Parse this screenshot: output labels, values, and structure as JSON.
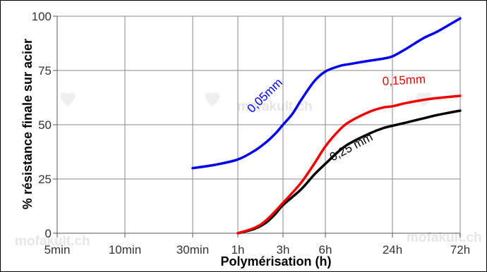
{
  "chart_data": {
    "type": "line",
    "xlabel": "Polymérisation (h)",
    "ylabel": "% résistance finale sur acier",
    "ylim": [
      0,
      100
    ],
    "yticks": [
      0,
      25,
      50,
      75,
      100
    ],
    "x_tick_labels": [
      "5min",
      "10min",
      "30min",
      "1h",
      "3h",
      "6h",
      "24h",
      "72h"
    ],
    "x_tick_hours": [
      0.0833,
      0.1667,
      0.5,
      1,
      3,
      6,
      24,
      72
    ],
    "grid": true,
    "watermark": "mofakult.ch",
    "series": [
      {
        "name": "0,05mm",
        "color": "#0000ee",
        "x": [
          0.5,
          0.7,
          1,
          1.5,
          2,
          2.5,
          3,
          3.5,
          4,
          5,
          6,
          8,
          10,
          15,
          20,
          24,
          30,
          40,
          50,
          72
        ],
        "y": [
          30,
          31.5,
          34,
          38,
          42,
          46,
          50,
          55,
          61,
          70,
          74.5,
          77,
          78,
          79.5,
          80.5,
          81.5,
          85,
          90,
          93,
          99
        ]
      },
      {
        "name": "0,15mm",
        "color": "#ee0000",
        "x": [
          1,
          1.5,
          2,
          3,
          4,
          5,
          6,
          8,
          10,
          15,
          20,
          24,
          30,
          40,
          50,
          72
        ],
        "y": [
          0,
          2.5,
          6,
          14,
          23,
          32,
          40,
          47.5,
          51.5,
          56,
          58,
          58.5,
          60,
          61.5,
          62.3,
          63.3
        ]
      },
      {
        "name": "0,25 mm",
        "color": "#000000",
        "x": [
          1,
          1.5,
          2,
          2.5,
          3,
          4,
          5,
          6,
          8,
          10,
          15,
          20,
          24,
          30,
          40,
          50,
          72
        ],
        "y": [
          0,
          2,
          5,
          9,
          13,
          20,
          27,
          32,
          38,
          41.5,
          46,
          48.5,
          49.5,
          51,
          53,
          54.5,
          56.5
        ]
      }
    ]
  }
}
